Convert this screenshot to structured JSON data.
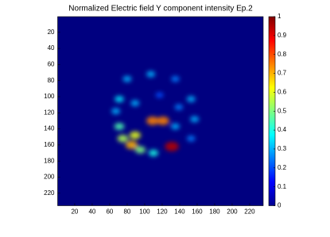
{
  "chart_data": {
    "type": "heatmap",
    "title": "Normalized Electric field Y component intensity Ep.2",
    "xlim": [
      0.5,
      235.5
    ],
    "ylim": [
      0.5,
      235.5
    ],
    "xticks": [
      20,
      40,
      60,
      80,
      100,
      120,
      140,
      160,
      180,
      200,
      220
    ],
    "yticks": [
      20,
      40,
      60,
      80,
      100,
      120,
      140,
      160,
      180,
      200,
      220
    ],
    "clim": [
      0,
      1
    ],
    "cticks": [
      0,
      0.1,
      0.2,
      0.3,
      0.4,
      0.5,
      0.6,
      0.7,
      0.8,
      0.9,
      1
    ],
    "colormap": "jet",
    "hotspots": {
      "x": [
        71,
        75,
        85,
        89,
        95,
        110,
        109,
        121,
        131,
        80,
        107,
        135,
        153,
        157,
        153,
        71,
        67,
        89,
        117,
        139,
        135
      ],
      "y": [
        137,
        152,
        160,
        148,
        166,
        170,
        130,
        130,
        162,
        78,
        72,
        78,
        103,
        128,
        152,
        103,
        118,
        108,
        98,
        113,
        137
      ],
      "values": [
        0.45,
        0.55,
        0.7,
        0.6,
        0.5,
        0.4,
        0.75,
        0.75,
        0.95,
        0.3,
        0.3,
        0.25,
        0.3,
        0.3,
        0.25,
        0.35,
        0.3,
        0.3,
        0.2,
        0.25,
        0.3
      ]
    }
  }
}
